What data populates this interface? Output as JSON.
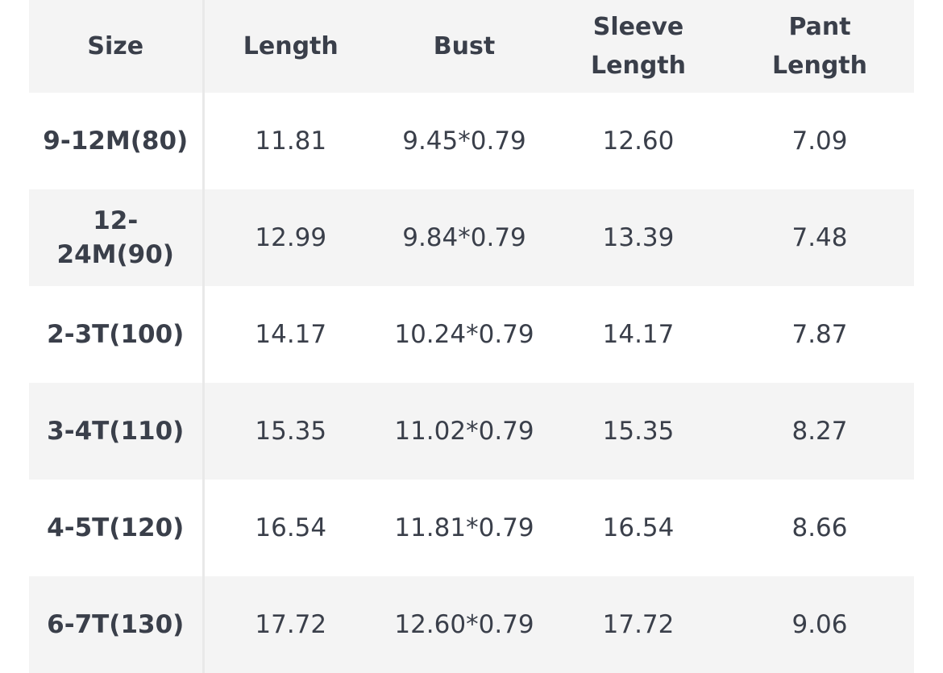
{
  "table": {
    "header": [
      "Size",
      "Length",
      "Bust",
      "Sleeve Length",
      "Pant Length"
    ],
    "rows": [
      [
        "9-12M(80)",
        "11.81",
        "9.45*0.79",
        "12.60",
        "7.09"
      ],
      [
        "12-24M(90)",
        "12.99",
        "9.84*0.79",
        "13.39",
        "7.48"
      ],
      [
        "2-3T(100)",
        "14.17",
        "10.24*0.79",
        "14.17",
        "7.87"
      ],
      [
        "3-4T(110)",
        "15.35",
        "11.02*0.79",
        "15.35",
        "8.27"
      ],
      [
        "4-5T(120)",
        "16.54",
        "11.81*0.79",
        "16.54",
        "8.66"
      ],
      [
        "6-7T(130)",
        "17.72",
        "12.60*0.79",
        "17.72",
        "9.06"
      ]
    ]
  }
}
